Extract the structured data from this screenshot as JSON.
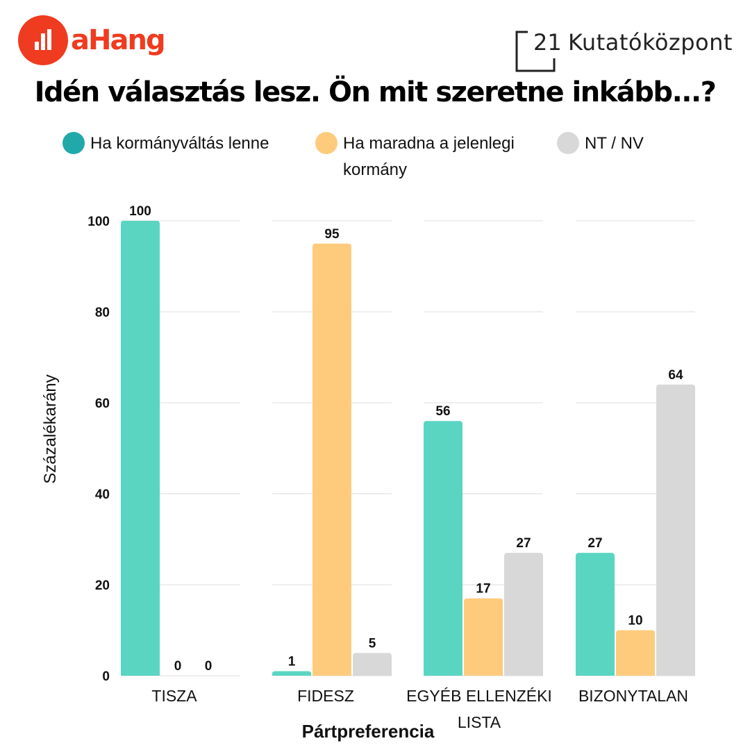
{
  "brand": {
    "left_logo_text": "aHang",
    "right_logo_number": "21",
    "right_logo_name": "Kutatóközpont"
  },
  "colors": {
    "accent": "#ef3b1f",
    "series_1": "#59d5c2",
    "series_1_legend": "#20a9a8",
    "series_2": "#fecb7d",
    "series_3": "#d8d8d8"
  },
  "chart_data": {
    "type": "bar",
    "title": "Idén választás lesz. Ön mit szeretne inkább...?",
    "xlabel": "Pártpreferencia",
    "ylabel": "Százalékarány",
    "categories": [
      "TISZA",
      "FIDESZ",
      "EGYÉB ELLENZÉKI LISTA",
      "BIZONYTALAN"
    ],
    "series": [
      {
        "name": "Ha kormányváltás lenne",
        "values": [
          100,
          1,
          56,
          27
        ]
      },
      {
        "name": "Ha maradna a jelenlegi kormány",
        "values": [
          0,
          95,
          17,
          10
        ]
      },
      {
        "name": "NT / NV",
        "values": [
          0,
          5,
          27,
          64
        ]
      }
    ],
    "yticks": [
      0,
      20,
      40,
      60,
      80,
      100
    ],
    "ylim": [
      0,
      100
    ],
    "grid": true,
    "legend_position": "top"
  }
}
